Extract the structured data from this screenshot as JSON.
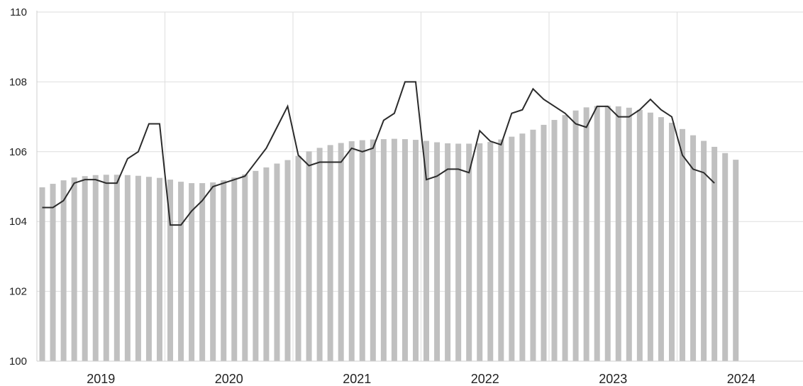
{
  "chart_data": {
    "type": "bar",
    "title": "",
    "xlabel": "",
    "ylabel": "",
    "ylim": [
      100,
      110
    ],
    "yticks": [
      "100",
      "102",
      "104",
      "106",
      "108",
      "110"
    ],
    "year_labels": [
      "2019",
      "2020",
      "2021",
      "2022",
      "2023",
      "2024"
    ],
    "grid": true,
    "legend": "none",
    "colors": {
      "bars": "#c0c0c0",
      "line": "#2b2b2b",
      "grid": "#dedede",
      "axis": "#cfcfcf"
    },
    "months_per_year": 12,
    "series": [
      {
        "type": "bar",
        "values": [
          104.98,
          105.08,
          105.18,
          105.26,
          105.3,
          105.33,
          105.34,
          105.34,
          105.33,
          105.31,
          105.28,
          105.25,
          105.2,
          105.14,
          105.1,
          105.1,
          105.12,
          105.18,
          105.26,
          105.35,
          105.45,
          105.55,
          105.66,
          105.76,
          105.88,
          106.01,
          106.11,
          106.19,
          106.25,
          106.3,
          106.33,
          106.35,
          106.36,
          106.37,
          106.36,
          106.34,
          106.31,
          106.27,
          106.24,
          106.23,
          106.23,
          106.24,
          106.28,
          106.35,
          106.43,
          106.52,
          106.63,
          106.77,
          106.91,
          107.05,
          107.18,
          107.27,
          107.31,
          107.32,
          107.3,
          107.26,
          107.2,
          107.12,
          106.99,
          106.83,
          106.65,
          106.47,
          106.31,
          106.14,
          105.96,
          105.77
        ]
      },
      {
        "type": "line",
        "values": [
          104.4,
          104.4,
          104.6,
          105.1,
          105.2,
          105.2,
          105.1,
          105.1,
          105.8,
          106.0,
          106.8,
          106.8,
          103.9,
          103.9,
          104.3,
          104.6,
          105.0,
          105.1,
          105.2,
          105.3,
          105.7,
          106.1,
          106.7,
          107.3,
          105.9,
          105.6,
          105.7,
          105.7,
          105.7,
          106.1,
          106.0,
          106.1,
          106.9,
          107.1,
          108.0,
          108.0,
          105.2,
          105.3,
          105.5,
          105.5,
          105.4,
          106.6,
          106.3,
          106.2,
          107.1,
          107.2,
          107.8,
          107.5,
          107.3,
          107.1,
          106.8,
          106.7,
          107.3,
          107.3,
          107.0,
          107.0,
          107.2,
          107.5,
          107.2,
          107.0,
          105.9,
          105.5,
          105.4,
          105.1
        ]
      }
    ]
  }
}
